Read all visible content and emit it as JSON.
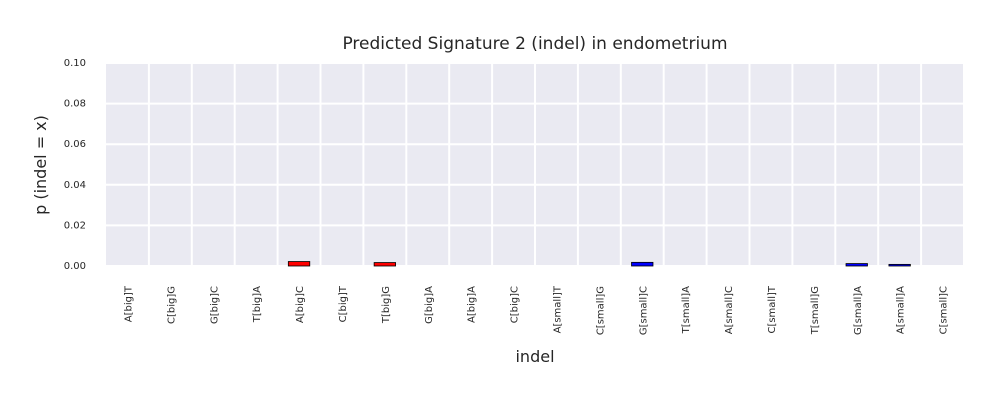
{
  "chart_data": {
    "type": "bar",
    "title": "Predicted Signature 2 (indel) in endometrium",
    "xlabel": "indel",
    "ylabel": "p (indel = x)",
    "ylim": [
      0,
      0.1
    ],
    "yticks": [
      "0.00",
      "0.02",
      "0.04",
      "0.06",
      "0.08",
      "0.10"
    ],
    "ytick_values": [
      0,
      0.02,
      0.04,
      0.06,
      0.08,
      0.1
    ],
    "grid": true,
    "categories": [
      "A[big]T",
      "C[big]G",
      "G[big]C",
      "T[big]A",
      "A[big]C",
      "C[big]T",
      "T[big]G",
      "G[big]A",
      "A[big]A",
      "C[big]C",
      "A[small]T",
      "C[small]G",
      "G[small]C",
      "T[small]A",
      "A[small]C",
      "C[small]T",
      "T[small]G",
      "G[small]A",
      "A[small]A",
      "C[small]C"
    ],
    "values": [
      0,
      0,
      0,
      0,
      0.0022,
      0,
      0.0017,
      0,
      0,
      0,
      0,
      0,
      0.0018,
      0,
      0,
      0,
      0,
      0.0012,
      0.0008,
      0
    ],
    "bar_colors": [
      "#ff0000",
      "#ff0000",
      "#ff0000",
      "#ff0000",
      "#ff0000",
      "#ff0000",
      "#ff0000",
      "#ff0000",
      "#ff0000",
      "#ff0000",
      "#0000ff",
      "#0000ff",
      "#0000ff",
      "#0000ff",
      "#0000ff",
      "#0000ff",
      "#0000ff",
      "#0000ff",
      "#0000ff",
      "#0000ff"
    ],
    "background_color": "#eaeaf2",
    "grid_color": "#ffffff"
  }
}
